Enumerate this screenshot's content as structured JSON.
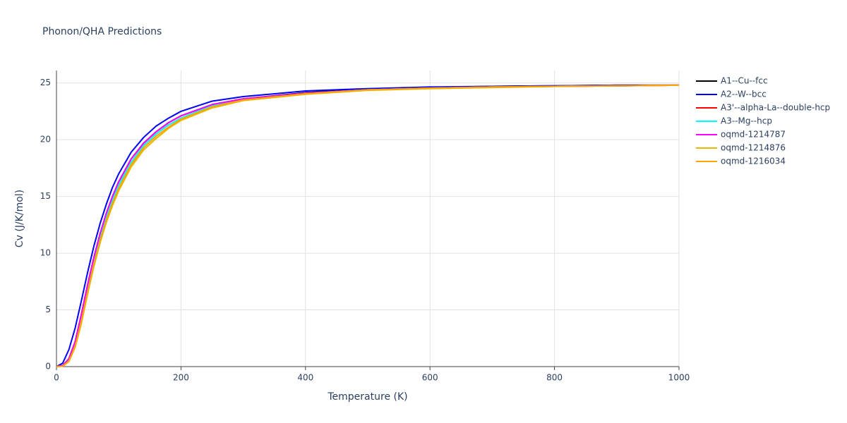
{
  "chart_data": {
    "type": "line",
    "title": "Phonon/QHA Predictions",
    "x_label": "Temperature (K)",
    "y_label": "Cv (J/K/mol)",
    "x": [
      0,
      10,
      20,
      30,
      40,
      50,
      60,
      70,
      80,
      90,
      100,
      120,
      140,
      160,
      180,
      200,
      250,
      300,
      400,
      500,
      600,
      700,
      800,
      900,
      1000
    ],
    "series": [
      {
        "name": "A1--Cu--fcc",
        "color": "#000000",
        "values": [
          0,
          0.1,
          0.7,
          2.2,
          4.6,
          7.2,
          9.6,
          11.7,
          13.5,
          15.0,
          16.3,
          18.3,
          19.7,
          20.7,
          21.5,
          22.1,
          23.1,
          23.6,
          24.15,
          24.45,
          24.6,
          24.7,
          24.75,
          24.8,
          24.8
        ]
      },
      {
        "name": "A2--W--bcc",
        "color": "#0000ff",
        "values": [
          0,
          0.3,
          1.5,
          3.4,
          5.8,
          8.3,
          10.6,
          12.6,
          14.3,
          15.8,
          17.0,
          18.9,
          20.2,
          21.2,
          21.9,
          22.5,
          23.4,
          23.8,
          24.3,
          24.5,
          24.65,
          24.7,
          24.75,
          24.8,
          24.8
        ]
      },
      {
        "name": "A3'--alpha-La--double-hcp",
        "color": "#ff0000",
        "values": [
          0,
          0.05,
          0.6,
          2.0,
          4.3,
          6.9,
          9.3,
          11.4,
          13.2,
          14.7,
          16.0,
          18.0,
          19.5,
          20.5,
          21.3,
          21.9,
          23.0,
          23.55,
          24.1,
          24.4,
          24.55,
          24.65,
          24.7,
          24.75,
          24.8
        ]
      },
      {
        "name": "A3--Mg--hcp",
        "color": "#00ffff",
        "values": [
          0,
          0.05,
          0.6,
          2.0,
          4.3,
          6.9,
          9.3,
          11.4,
          13.2,
          14.7,
          16.0,
          18.0,
          19.5,
          20.5,
          21.3,
          21.9,
          23.0,
          23.55,
          24.1,
          24.4,
          24.55,
          24.65,
          24.7,
          24.75,
          24.8
        ]
      },
      {
        "name": "oqmd-1214787",
        "color": "#ff00ff",
        "values": [
          0,
          0.1,
          0.7,
          2.2,
          4.6,
          7.2,
          9.6,
          11.7,
          13.5,
          15.0,
          16.3,
          18.3,
          19.7,
          20.7,
          21.5,
          22.1,
          23.1,
          23.6,
          24.1,
          24.4,
          24.55,
          24.65,
          24.7,
          24.75,
          24.8
        ]
      },
      {
        "name": "oqmd-1214876",
        "color": "#e6b800",
        "values": [
          0,
          0.03,
          0.45,
          1.7,
          3.8,
          6.4,
          8.8,
          10.9,
          12.7,
          14.2,
          15.5,
          17.6,
          19.1,
          20.1,
          21.0,
          21.7,
          22.8,
          23.45,
          24.0,
          24.35,
          24.5,
          24.6,
          24.7,
          24.75,
          24.8
        ]
      },
      {
        "name": "oqmd-1216034",
        "color": "#ffa500",
        "values": [
          0,
          0.04,
          0.5,
          1.8,
          4.0,
          6.6,
          9.0,
          11.1,
          12.9,
          14.4,
          15.7,
          17.8,
          19.3,
          20.3,
          21.1,
          21.8,
          22.9,
          23.5,
          24.05,
          24.4,
          24.55,
          24.65,
          24.7,
          24.75,
          24.8
        ]
      }
    ],
    "xlim": [
      0,
      1000
    ],
    "xticks": [
      0,
      200,
      400,
      600,
      800,
      1000
    ],
    "ylim": [
      0,
      26.1
    ],
    "yticks": [
      0,
      5,
      10,
      15,
      20,
      25
    ],
    "grid": true,
    "legend": "right"
  }
}
